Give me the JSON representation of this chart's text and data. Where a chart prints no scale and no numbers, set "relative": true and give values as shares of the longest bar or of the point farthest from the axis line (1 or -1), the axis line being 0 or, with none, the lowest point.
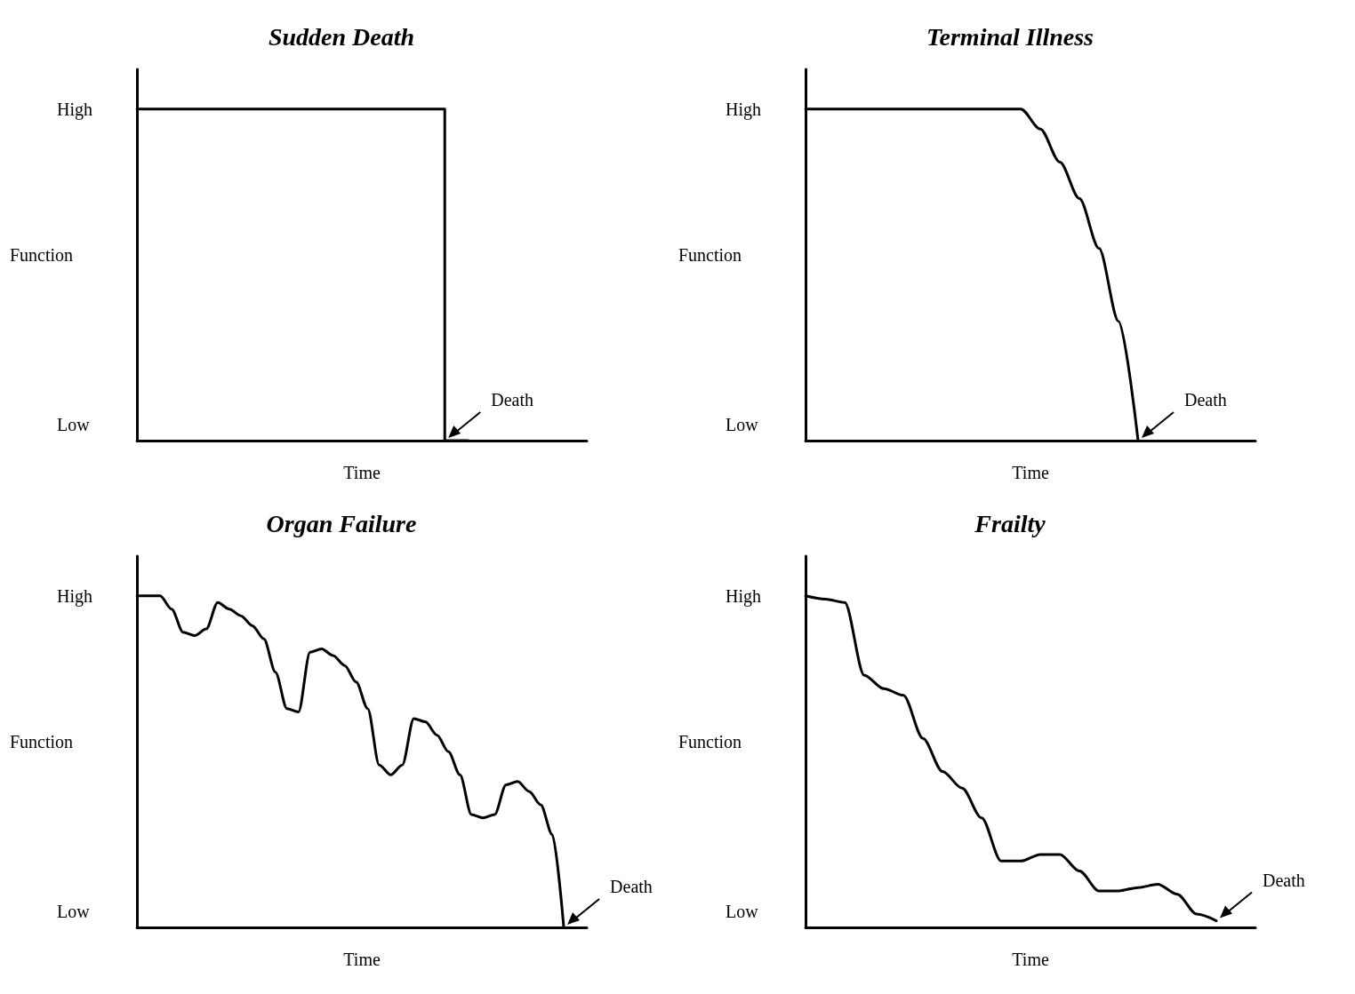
{
  "chart_data": [
    {
      "type": "step",
      "title": "Sudden Death",
      "xlabel": "Time",
      "ylabel": "Function",
      "relative": true,
      "annotations": [
        "High",
        "Low",
        "Death"
      ],
      "categories": [
        null,
        null,
        null,
        null,
        null,
        null,
        null,
        null,
        null,
        null,
        null,
        null,
        null,
        null,
        null,
        null,
        null,
        null,
        null,
        null
      ],
      "series": [
        {
          "color": "#000000",
          "values": [
            1,
            1,
            1,
            1,
            1,
            1,
            1,
            1,
            1,
            1,
            1,
            1,
            1,
            0,
            null,
            null,
            null,
            null,
            null,
            null
          ]
        }
      ]
    },
    {
      "type": "line",
      "title": "Terminal Illness",
      "xlabel": "Time",
      "ylabel": "Function",
      "relative": true,
      "annotations": [
        "High",
        "Low",
        "Death"
      ],
      "categories": [
        null,
        null,
        null,
        null,
        null,
        null,
        null,
        null,
        null,
        null,
        null,
        null,
        null,
        null,
        null,
        null,
        null,
        null,
        null,
        null,
        null,
        null,
        null,
        null
      ],
      "series": [
        {
          "color": "#000000",
          "values": [
            1,
            1,
            1,
            1,
            1,
            1,
            1,
            1,
            1,
            1,
            1,
            1,
            0.94,
            0.84,
            0.73,
            0.58,
            0.36,
            0,
            null,
            null,
            null,
            null,
            null,
            null
          ]
        }
      ]
    },
    {
      "type": "line",
      "title": "Organ Failure",
      "xlabel": "Time",
      "ylabel": "Function",
      "relative": true,
      "annotations": [
        "High",
        "Low",
        "Death"
      ],
      "categories": [
        null,
        null,
        null,
        null,
        null,
        null,
        null,
        null,
        null,
        null,
        null,
        null,
        null,
        null,
        null,
        null,
        null,
        null,
        null,
        null,
        null,
        null,
        null,
        null,
        null,
        null,
        null,
        null,
        null,
        null,
        null,
        null,
        null,
        null,
        null,
        null,
        null,
        null,
        null,
        null
      ],
      "series": [
        {
          "color": "#000000",
          "values": [
            1,
            1,
            1,
            0.96,
            0.89,
            0.88,
            0.9,
            0.98,
            0.96,
            0.94,
            0.91,
            0.87,
            0.77,
            0.66,
            0.65,
            0.83,
            0.84,
            0.82,
            0.79,
            0.74,
            0.66,
            0.49,
            0.46,
            0.49,
            0.63,
            0.62,
            0.58,
            0.53,
            0.46,
            0.34,
            0.33,
            0.34,
            0.43,
            0.44,
            0.41,
            0.37,
            0.28,
            0,
            null,
            null
          ]
        }
      ]
    },
    {
      "type": "line",
      "title": "Frailty",
      "xlabel": "Time",
      "ylabel": "Function",
      "relative": true,
      "annotations": [
        "High",
        "Low",
        "Death"
      ],
      "categories": [
        null,
        null,
        null,
        null,
        null,
        null,
        null,
        null,
        null,
        null,
        null,
        null,
        null,
        null,
        null,
        null,
        null,
        null,
        null,
        null,
        null,
        null,
        null,
        null
      ],
      "series": [
        {
          "color": "#000000",
          "values": [
            1,
            0.99,
            0.98,
            0.76,
            0.72,
            0.7,
            0.57,
            0.47,
            0.42,
            0.33,
            0.2,
            0.2,
            0.22,
            0.22,
            0.17,
            0.11,
            0.11,
            0.12,
            0.13,
            0.1,
            0.04,
            0.02,
            null,
            null
          ]
        }
      ]
    }
  ]
}
